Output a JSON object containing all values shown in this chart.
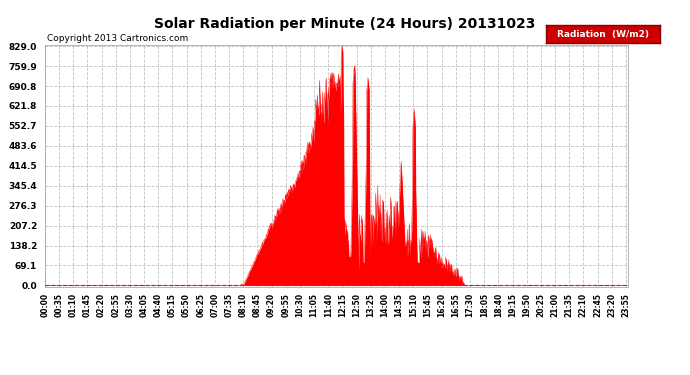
{
  "title": "Solar Radiation per Minute (24 Hours) 20131023",
  "copyright_text": "Copyright 2013 Cartronics.com",
  "legend_label": "Radiation  (W/m2)",
  "background_color": "#ffffff",
  "plot_bg_color": "#ffffff",
  "fill_color": "#ff0000",
  "line_color": "#ff0000",
  "grid_color": "#bbbbbb",
  "yticks": [
    0.0,
    69.1,
    138.2,
    207.2,
    276.3,
    345.4,
    414.5,
    483.6,
    552.7,
    621.8,
    690.8,
    759.9,
    829.0
  ],
  "ymax": 829.0,
  "total_minutes": 1440,
  "x_tick_labels": [
    "00:00",
    "00:35",
    "01:10",
    "01:45",
    "02:20",
    "02:55",
    "03:30",
    "04:05",
    "04:40",
    "05:15",
    "05:50",
    "06:25",
    "07:00",
    "07:35",
    "08:10",
    "08:45",
    "09:20",
    "09:55",
    "10:30",
    "11:05",
    "11:40",
    "12:15",
    "12:50",
    "13:25",
    "14:00",
    "14:35",
    "15:10",
    "15:45",
    "16:20",
    "16:55",
    "17:30",
    "18:05",
    "18:40",
    "19:15",
    "19:50",
    "20:25",
    "21:00",
    "21:35",
    "22:10",
    "22:45",
    "23:20",
    "23:55"
  ],
  "sunrise_minute": 490,
  "sunset_minute": 1045,
  "peak_minute": 735,
  "peak_value": 829.0
}
